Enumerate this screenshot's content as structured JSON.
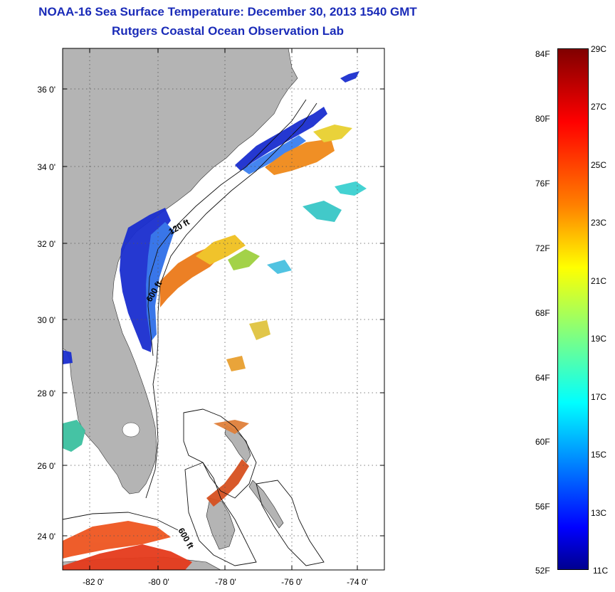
{
  "title": "NOAA-16 Sea Surface Temperature:  December 30, 2013 1540 GMT",
  "subtitle": "Rutgers Coastal Ocean Observation Lab",
  "colors": {
    "title": "#1a2bb8",
    "land": "#b4b4b4",
    "water": "#ffffff",
    "grid": "#555555"
  },
  "map": {
    "lon_range": [
      -83.0,
      -73.0
    ],
    "lat_range": [
      23.0,
      37.0
    ],
    "lon_tick_labels": [
      "-82 0'",
      "-80 0'",
      "-78 0'",
      "-76 0'",
      "-74 0'"
    ],
    "lat_tick_labels": [
      "36 0'",
      "34 0'",
      "32 0'",
      "30 0'",
      "28 0'",
      "26 0'",
      "24 0'"
    ],
    "contour_labels": [
      "120 ft",
      "600 ft",
      "600 ft"
    ]
  },
  "colorbar": {
    "fahrenheit_labels": [
      "84F",
      "80F",
      "76F",
      "72F",
      "68F",
      "64F",
      "60F",
      "56F",
      "52F"
    ],
    "celsius_labels": [
      "29C",
      "27C",
      "25C",
      "23C",
      "21C",
      "19C",
      "17C",
      "15C",
      "13C",
      "11C"
    ],
    "range_c": [
      11,
      29
    ],
    "colormap": "jet"
  }
}
